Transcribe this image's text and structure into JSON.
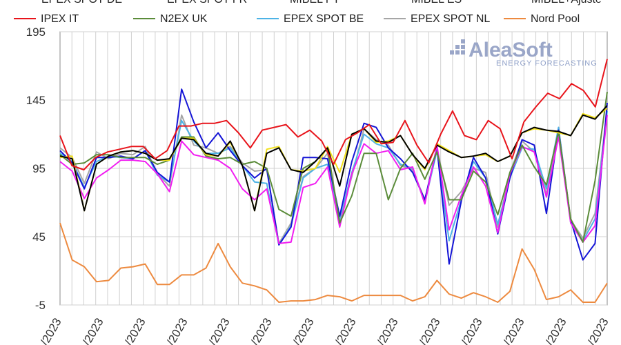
{
  "logo": {
    "brand": "AleaSoft",
    "tagline": "ENERGY FORECASTING"
  },
  "chart_data": {
    "type": "line",
    "title": "",
    "xlabel": "",
    "ylabel": "",
    "ylim": [
      -5,
      195
    ],
    "yticks": [
      -5,
      45,
      95,
      145,
      195
    ],
    "x_tick_labels": [
      "/2023",
      "/2023",
      "/2023",
      "/2023",
      "/2023",
      "/2023",
      "/2023",
      "/2023",
      "/2023",
      "/2023",
      "/2023",
      "/2023",
      "/2023",
      "/2023"
    ],
    "grid": "vertical",
    "legend_top_row": [
      "EPEX SPOT DE",
      "EPEX SPOT FR",
      "MIBEL PT",
      "MIBEL ES",
      "MIBEL+Ajuste"
    ],
    "legend": [
      {
        "name": "IPEX IT",
        "color": "#e8141b"
      },
      {
        "name": "N2EX UK",
        "color": "#5b8c3a"
      },
      {
        "name": "EPEX SPOT BE",
        "color": "#4db3e6"
      },
      {
        "name": "EPEX SPOT NL",
        "color": "#a6a6a6"
      },
      {
        "name": "Nord Pool",
        "color": "#ed8a3f"
      }
    ],
    "series": [
      {
        "name": "EPEX SPOT NL",
        "color": "#a6a6a6",
        "values": [
          110,
          103,
          84,
          107,
          102,
          106,
          105,
          111,
          91,
          82,
          134,
          112,
          110,
          106,
          111,
          99,
          93,
          94,
          40,
          55,
          89,
          95,
          106,
          57,
          89,
          124,
          116,
          112,
          97,
          94,
          72,
          110,
          68,
          78,
          95,
          92,
          52,
          92,
          115,
          107,
          76,
          125,
          57,
          44,
          62,
          139
        ]
      },
      {
        "name": "EPEX SPOT BE",
        "color": "#4db3e6",
        "values": [
          106,
          100,
          81,
          100,
          104,
          103,
          102,
          108,
          90,
          85,
          130,
          115,
          106,
          106,
          110,
          97,
          85,
          84,
          39,
          53,
          88,
          95,
          98,
          58,
          92,
          120,
          113,
          110,
          98,
          95,
          70,
          108,
          42,
          72,
          100,
          88,
          54,
          88,
          110,
          109,
          80,
          125,
          55,
          42,
          58,
          137
        ]
      },
      {
        "name": "EPEX SPOT DE (blue)",
        "color": "#1515d6",
        "values": [
          108,
          99,
          80,
          103,
          103,
          104,
          102,
          108,
          92,
          85,
          153,
          129,
          110,
          121,
          108,
          97,
          88,
          95,
          39,
          52,
          103,
          103,
          102,
          60,
          100,
          128,
          125,
          110,
          102,
          92,
          72,
          110,
          25,
          71,
          103,
          88,
          47,
          88,
          116,
          112,
          62,
          123,
          57,
          28,
          40,
          143
        ]
      },
      {
        "name": "EPEX SPOT FR (magenta)",
        "color": "#f11ef1",
        "values": [
          100,
          93,
          73,
          88,
          94,
          101,
          101,
          100,
          91,
          78,
          115,
          105,
          103,
          101,
          95,
          80,
          72,
          80,
          40,
          41,
          81,
          84,
          96,
          52,
          91,
          113,
          106,
          108,
          94,
          96,
          69,
          112,
          50,
          75,
          96,
          82,
          48,
          91,
          111,
          107,
          74,
          118,
          55,
          41,
          53,
          134
        ]
      },
      {
        "name": "N2EX UK",
        "color": "#5b8c3a",
        "values": [
          105,
          98,
          99,
          105,
          105,
          103,
          103,
          103,
          98,
          101,
          118,
          118,
          104,
          102,
          103,
          98,
          100,
          95,
          65,
          60,
          95,
          100,
          110,
          55,
          75,
          106,
          106,
          72,
          95,
          106,
          87,
          107,
          72,
          72,
          93,
          85,
          61,
          92,
          112,
          96,
          83,
          122,
          58,
          41,
          86,
          151
        ]
      },
      {
        "name": "MIBEL (yellow)",
        "color": "#f2e11a",
        "values": [
          103,
          104,
          64,
          98,
          104,
          107,
          108,
          106,
          101,
          101,
          117,
          117,
          105,
          104,
          114,
          97,
          64,
          109,
          111,
          94,
          93,
          95,
          111,
          92,
          120,
          124,
          114,
          115,
          119,
          105,
          94,
          113,
          108,
          103,
          104,
          105,
          100,
          104,
          121,
          124,
          123,
          121,
          119,
          135,
          132,
          139
        ]
      },
      {
        "name": "MIBEL ES",
        "color": "#000000",
        "values": [
          104,
          102,
          64,
          98,
          104,
          107,
          108,
          106,
          101,
          102,
          117,
          116,
          106,
          104,
          115,
          97,
          64,
          106,
          110,
          94,
          92,
          100,
          110,
          82,
          120,
          124,
          115,
          114,
          119,
          105,
          95,
          112,
          107,
          103,
          104,
          106,
          100,
          104,
          121,
          125,
          123,
          122,
          119,
          134,
          131,
          141
        ]
      },
      {
        "name": "IPEX IT",
        "color": "#e8141b",
        "values": [
          119,
          97,
          94,
          103,
          107,
          109,
          111,
          111,
          102,
          108,
          126,
          126,
          128,
          128,
          130,
          121,
          110,
          123,
          125,
          127,
          118,
          123,
          115,
          98,
          116,
          121,
          127,
          113,
          114,
          130,
          112,
          99,
          120,
          137,
          119,
          116,
          130,
          124,
          102,
          129,
          140,
          150,
          146,
          157,
          152,
          140,
          175
        ]
      },
      {
        "name": "Nord Pool",
        "color": "#ed8a3f",
        "values": [
          55,
          28,
          23,
          12,
          13,
          22,
          23,
          25,
          10,
          10,
          17,
          17,
          22,
          40,
          23,
          11,
          9,
          6,
          -3,
          -2,
          -2,
          -1,
          2,
          1,
          -2,
          2,
          2,
          2,
          2,
          -2,
          1,
          13,
          3,
          0,
          4,
          1,
          -3,
          5,
          36,
          21,
          -1,
          1,
          6,
          -3,
          -3,
          11
        ]
      },
      {
        "name": "Nord Pool low",
        "color": "#ed8a3f",
        "values": []
      }
    ]
  }
}
